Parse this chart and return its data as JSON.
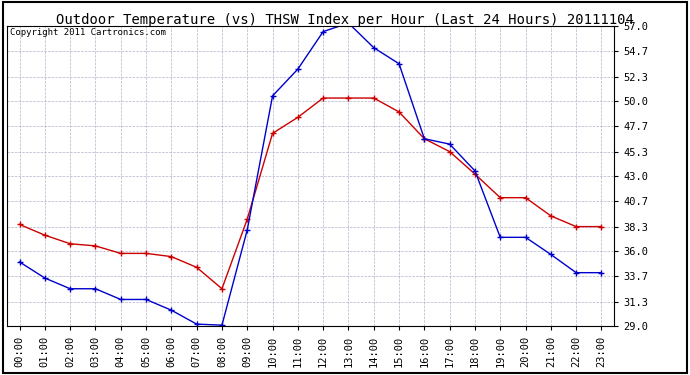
{
  "title": "Outdoor Temperature (vs) THSW Index per Hour (Last 24 Hours) 20111104",
  "copyright": "Copyright 2011 Cartronics.com",
  "hours": [
    "00:00",
    "01:00",
    "02:00",
    "03:00",
    "04:00",
    "05:00",
    "06:00",
    "07:00",
    "08:00",
    "09:00",
    "10:00",
    "11:00",
    "12:00",
    "13:00",
    "14:00",
    "15:00",
    "16:00",
    "17:00",
    "18:00",
    "19:00",
    "20:00",
    "21:00",
    "22:00",
    "23:00"
  ],
  "temp_red": [
    38.5,
    37.5,
    36.7,
    36.5,
    35.8,
    35.8,
    35.5,
    34.5,
    32.5,
    39.0,
    47.0,
    48.5,
    50.3,
    50.3,
    50.3,
    49.0,
    46.5,
    45.3,
    43.2,
    41.0,
    41.0,
    39.3,
    38.3,
    38.3
  ],
  "thsw_blue": [
    35.0,
    33.5,
    32.5,
    32.5,
    31.5,
    31.5,
    30.5,
    29.2,
    29.1,
    38.0,
    50.5,
    53.0,
    56.5,
    57.3,
    55.0,
    53.5,
    46.5,
    46.0,
    43.5,
    37.3,
    37.3,
    35.7,
    34.0,
    34.0
  ],
  "ylim": [
    29.0,
    57.0
  ],
  "yticks": [
    29.0,
    31.3,
    33.7,
    36.0,
    38.3,
    40.7,
    43.0,
    45.3,
    47.7,
    50.0,
    52.3,
    54.7,
    57.0
  ],
  "red_color": "#cc0000",
  "blue_color": "#0000cc",
  "bg_color": "#ffffff",
  "grid_color": "#aaaacc",
  "title_fontsize": 10,
  "tick_fontsize": 7.5,
  "copyright_fontsize": 6.5
}
